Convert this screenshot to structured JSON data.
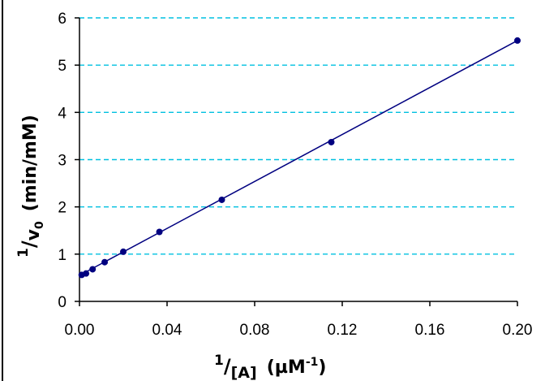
{
  "chart_data": {
    "type": "scatter",
    "x_ticks": [
      "0.00",
      "0.04",
      "0.08",
      "0.12",
      "0.16",
      "0.20"
    ],
    "y_ticks": [
      "0",
      "1",
      "2",
      "3",
      "4",
      "5",
      "6"
    ],
    "xlim": [
      0,
      0.2
    ],
    "ylim": [
      0,
      6
    ],
    "grid": "horizontal dashed",
    "x_axis_label": {
      "numerator": "1",
      "denominator": "[A]",
      "unit": "(µM",
      "unit_exp": "-1",
      "unit_close": ")"
    },
    "y_axis_label": {
      "numerator": "1",
      "denominator": "v",
      "sub": "0",
      "unit": "(min/mM)"
    },
    "series": [
      {
        "points": [
          {
            "x": 0.001,
            "y": 0.56
          },
          {
            "x": 0.003,
            "y": 0.59
          },
          {
            "x": 0.006,
            "y": 0.68
          },
          {
            "x": 0.0115,
            "y": 0.83
          },
          {
            "x": 0.02,
            "y": 1.05
          },
          {
            "x": 0.0365,
            "y": 1.47
          },
          {
            "x": 0.065,
            "y": 2.15
          },
          {
            "x": 0.115,
            "y": 3.37
          },
          {
            "x": 0.2,
            "y": 5.52
          }
        ],
        "fit": {
          "x0": 0,
          "y0": 0.55,
          "x1": 0.2,
          "y1": 5.52
        }
      }
    ],
    "colors": {
      "points": "#000080",
      "line": "#000080",
      "grid": "#00c0e0",
      "axis": "#000000"
    }
  }
}
